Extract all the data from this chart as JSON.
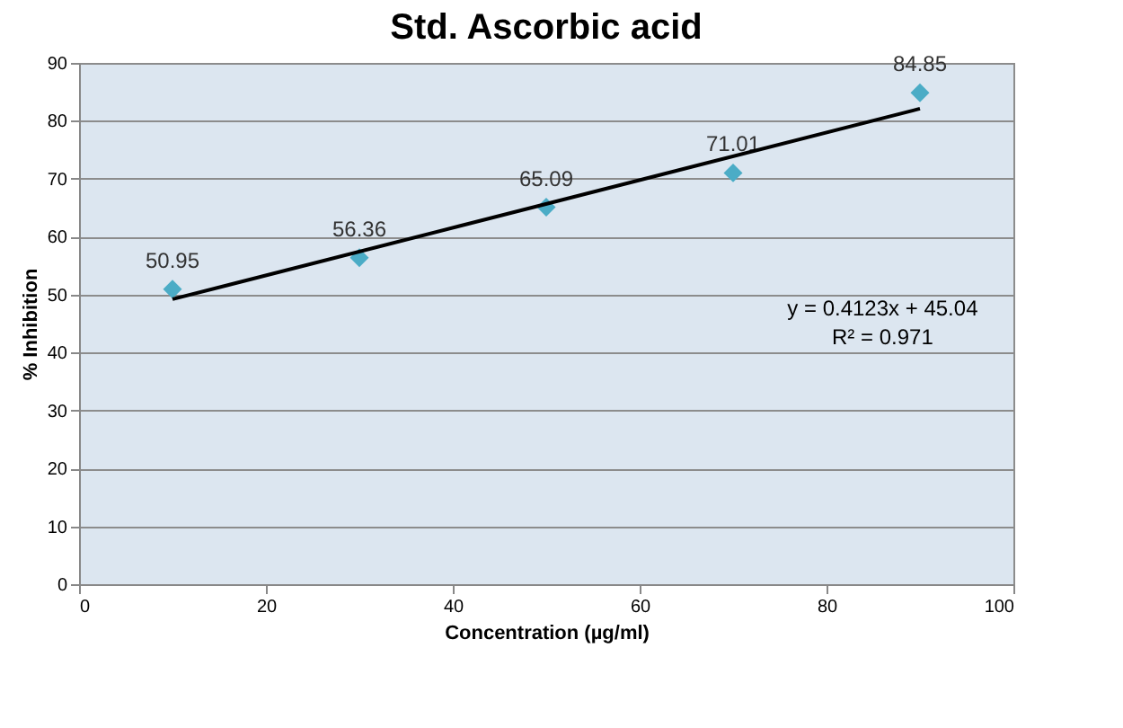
{
  "chart_data": {
    "type": "scatter",
    "title": "Std. Ascorbic acid",
    "xlabel": "Concentration (µg/ml)",
    "ylabel": "% Inhibition",
    "x": [
      10,
      30,
      50,
      70,
      90
    ],
    "series": [
      {
        "color": "#4bacc6",
        "values": [
          50.95,
          56.36,
          65.09,
          71.01,
          84.85
        ],
        "marker": "diamond",
        "data_labels": true
      },
      {
        "type": "line",
        "color": "#000000",
        "x": [
          10,
          90
        ],
        "values": [
          49.2,
          82.1
        ],
        "marker": "none",
        "line_style": "solid"
      }
    ],
    "xlim": [
      0,
      100
    ],
    "xticks": [
      0,
      20,
      40,
      60,
      80,
      100
    ],
    "ylim": [
      0,
      90
    ],
    "yticks": [
      0,
      10,
      20,
      30,
      40,
      50,
      60,
      70,
      80,
      90
    ],
    "grid": "y",
    "annotations": [
      "y = 0.4123x + 45.04",
      "R² = 0.971"
    ]
  }
}
